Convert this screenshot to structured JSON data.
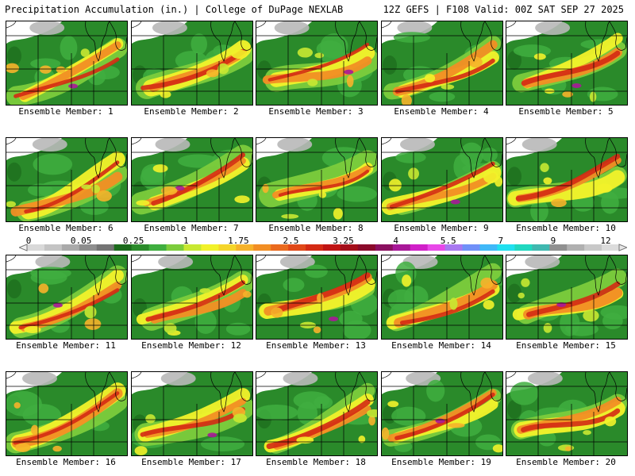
{
  "header": {
    "title_left": "Precipitation Accumulation (in.) | College of DuPage NEXLAB",
    "title_right": "12Z GEFS | F108 Valid: 00Z SAT SEP 27 2025"
  },
  "members": [
    {
      "label": "Ensemble Member: 1"
    },
    {
      "label": "Ensemble Member: 2"
    },
    {
      "label": "Ensemble Member: 3"
    },
    {
      "label": "Ensemble Member: 4"
    },
    {
      "label": "Ensemble Member: 5"
    },
    {
      "label": "Ensemble Member: 6"
    },
    {
      "label": "Ensemble Member: 7"
    },
    {
      "label": "Ensemble Member: 8"
    },
    {
      "label": "Ensemble Member: 9"
    },
    {
      "label": "Ensemble Member: 10"
    },
    {
      "label": "Ensemble Member: 11"
    },
    {
      "label": "Ensemble Member: 12"
    },
    {
      "label": "Ensemble Member: 13"
    },
    {
      "label": "Ensemble Member: 14"
    },
    {
      "label": "Ensemble Member: 15"
    },
    {
      "label": "Ensemble Member: 16"
    },
    {
      "label": "Ensemble Member: 17"
    },
    {
      "label": "Ensemble Member: 18"
    },
    {
      "label": "Ensemble Member: 19"
    },
    {
      "label": "Ensemble Member: 20"
    }
  ],
  "colorbar": {
    "labels": [
      "0",
      "0.05",
      "0.25",
      "1",
      "1.75",
      "2.5",
      "3.25",
      "4",
      "5.5",
      "7",
      "9",
      "12"
    ],
    "colors": [
      "#d9d9d9",
      "#c4c4c4",
      "#aaaaaa",
      "#8e8e8e",
      "#747474",
      "#1c6b1c",
      "#2a8a2a",
      "#3fae3f",
      "#7ccc3c",
      "#c8e832",
      "#f2f22a",
      "#f5d52a",
      "#f6b22a",
      "#f28e24",
      "#ea6a1e",
      "#e04818",
      "#d42a14",
      "#c01414",
      "#a40e1a",
      "#8a0a2a",
      "#8a1060",
      "#a81898",
      "#d020c8",
      "#e848e8",
      "#a878f0",
      "#7090f8",
      "#40b8f8",
      "#20e0f0",
      "#20d8c0",
      "#40b8b0",
      "#909090",
      "#b0b0b0",
      "#c8c8c8",
      "#dcdcdc"
    ]
  }
}
